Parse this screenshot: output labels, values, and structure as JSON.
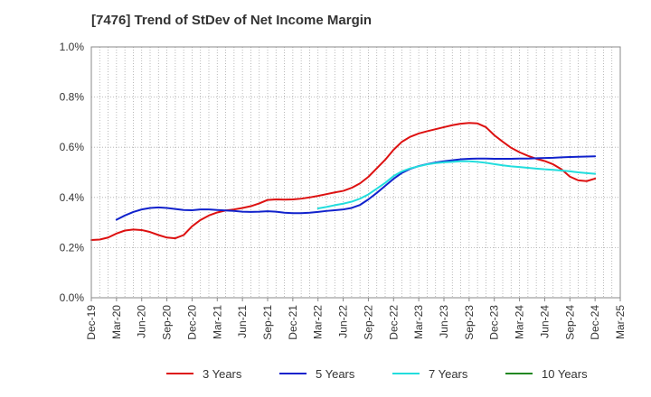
{
  "chart_data": {
    "type": "line",
    "title": "[7476]  Trend of StDev of Net Income Margin",
    "xlabel": "",
    "ylabel": "",
    "x_ticks": [
      "Dec-19",
      "Mar-20",
      "Jun-20",
      "Sep-20",
      "Dec-20",
      "Mar-21",
      "Jun-21",
      "Sep-21",
      "Dec-21",
      "Mar-22",
      "Jun-22",
      "Sep-22",
      "Dec-22",
      "Mar-23",
      "Jun-23",
      "Sep-23",
      "Dec-23",
      "Mar-24",
      "Jun-24",
      "Sep-24",
      "Dec-24",
      "Mar-25"
    ],
    "y_ticks": [
      "0.0%",
      "0.2%",
      "0.4%",
      "0.6%",
      "0.8%",
      "1.0%"
    ],
    "ylim": [
      0,
      1.0
    ],
    "grid": true,
    "legend_position": "bottom",
    "series": [
      {
        "name": "3 Years",
        "color": "#dd1111",
        "x": [
          "Dec-19",
          "Jan-20",
          "Feb-20",
          "Mar-20",
          "Apr-20",
          "May-20",
          "Jun-20",
          "Jul-20",
          "Aug-20",
          "Sep-20",
          "Oct-20",
          "Nov-20",
          "Dec-20",
          "Jan-21",
          "Feb-21",
          "Mar-21",
          "Apr-21",
          "May-21",
          "Jun-21",
          "Jul-21",
          "Aug-21",
          "Sep-21",
          "Oct-21",
          "Nov-21",
          "Dec-21",
          "Jan-22",
          "Feb-22",
          "Mar-22",
          "Apr-22",
          "May-22",
          "Jun-22",
          "Jul-22",
          "Aug-22",
          "Sep-22",
          "Oct-22",
          "Nov-22",
          "Dec-22",
          "Jan-23",
          "Feb-23",
          "Mar-23",
          "Apr-23",
          "May-23",
          "Jun-23",
          "Jul-23",
          "Aug-23",
          "Sep-23",
          "Oct-23",
          "Nov-23",
          "Dec-23",
          "Jan-24",
          "Feb-24",
          "Mar-24",
          "Apr-24",
          "May-24",
          "Jun-24",
          "Jul-24",
          "Aug-24",
          "Sep-24",
          "Oct-24",
          "Nov-24",
          "Dec-24"
        ],
        "values": [
          0.23,
          0.232,
          0.24,
          0.256,
          0.268,
          0.272,
          0.27,
          0.262,
          0.25,
          0.24,
          0.237,
          0.25,
          0.285,
          0.31,
          0.328,
          0.34,
          0.348,
          0.352,
          0.358,
          0.365,
          0.376,
          0.39,
          0.392,
          0.391,
          0.392,
          0.395,
          0.4,
          0.406,
          0.413,
          0.42,
          0.426,
          0.438,
          0.456,
          0.482,
          0.516,
          0.55,
          0.59,
          0.622,
          0.642,
          0.655,
          0.664,
          0.672,
          0.68,
          0.688,
          0.694,
          0.697,
          0.695,
          0.68,
          0.648,
          0.622,
          0.598,
          0.58,
          0.566,
          0.554,
          0.545,
          0.532,
          0.512,
          0.483,
          0.468,
          0.465,
          0.475
        ]
      },
      {
        "name": "5 Years",
        "color": "#1122cc",
        "x": [
          "Mar-20",
          "Apr-20",
          "May-20",
          "Jun-20",
          "Jul-20",
          "Aug-20",
          "Sep-20",
          "Oct-20",
          "Nov-20",
          "Dec-20",
          "Jan-21",
          "Feb-21",
          "Mar-21",
          "Apr-21",
          "May-21",
          "Jun-21",
          "Jul-21",
          "Aug-21",
          "Sep-21",
          "Oct-21",
          "Nov-21",
          "Dec-21",
          "Jan-22",
          "Feb-22",
          "Mar-22",
          "Apr-22",
          "May-22",
          "Jun-22",
          "Jul-22",
          "Aug-22",
          "Sep-22",
          "Oct-22",
          "Nov-22",
          "Dec-22",
          "Jan-23",
          "Feb-23",
          "Mar-23",
          "Apr-23",
          "May-23",
          "Jun-23",
          "Jul-23",
          "Aug-23",
          "Sep-23",
          "Oct-23",
          "Nov-23",
          "Dec-23",
          "Jan-24",
          "Feb-24",
          "Mar-24",
          "Apr-24",
          "May-24",
          "Jun-24",
          "Jul-24",
          "Aug-24",
          "Sep-24",
          "Oct-24",
          "Nov-24",
          "Dec-24"
        ],
        "values": [
          0.311,
          0.328,
          0.342,
          0.352,
          0.358,
          0.36,
          0.358,
          0.354,
          0.35,
          0.349,
          0.352,
          0.352,
          0.35,
          0.348,
          0.346,
          0.343,
          0.342,
          0.343,
          0.345,
          0.343,
          0.339,
          0.337,
          0.337,
          0.339,
          0.342,
          0.346,
          0.349,
          0.352,
          0.358,
          0.37,
          0.392,
          0.418,
          0.446,
          0.474,
          0.498,
          0.514,
          0.525,
          0.533,
          0.539,
          0.544,
          0.548,
          0.552,
          0.554,
          0.555,
          0.555,
          0.554,
          0.554,
          0.554,
          0.555,
          0.555,
          0.556,
          0.557,
          0.558,
          0.56,
          0.561,
          0.562,
          0.563,
          0.564
        ]
      },
      {
        "name": "7 Years",
        "color": "#22dddd",
        "x": [
          "Mar-22",
          "Apr-22",
          "May-22",
          "Jun-22",
          "Jul-22",
          "Aug-22",
          "Sep-22",
          "Oct-22",
          "Nov-22",
          "Dec-22",
          "Jan-23",
          "Feb-23",
          "Mar-23",
          "Apr-23",
          "May-23",
          "Jun-23",
          "Jul-23",
          "Aug-23",
          "Sep-23",
          "Oct-23",
          "Nov-23",
          "Dec-23",
          "Jan-24",
          "Feb-24",
          "Mar-24",
          "Apr-24",
          "May-24",
          "Jun-24",
          "Jul-24",
          "Aug-24",
          "Sep-24",
          "Oct-24",
          "Nov-24",
          "Dec-24"
        ],
        "values": [
          0.356,
          0.362,
          0.369,
          0.375,
          0.383,
          0.395,
          0.412,
          0.435,
          0.458,
          0.485,
          0.504,
          0.516,
          0.524,
          0.532,
          0.537,
          0.54,
          0.542,
          0.544,
          0.544,
          0.542,
          0.538,
          0.533,
          0.528,
          0.524,
          0.521,
          0.518,
          0.515,
          0.512,
          0.51,
          0.507,
          0.504,
          0.5,
          0.497,
          0.494
        ]
      },
      {
        "name": "10 Years",
        "color": "#228822",
        "x": [],
        "values": []
      }
    ]
  }
}
